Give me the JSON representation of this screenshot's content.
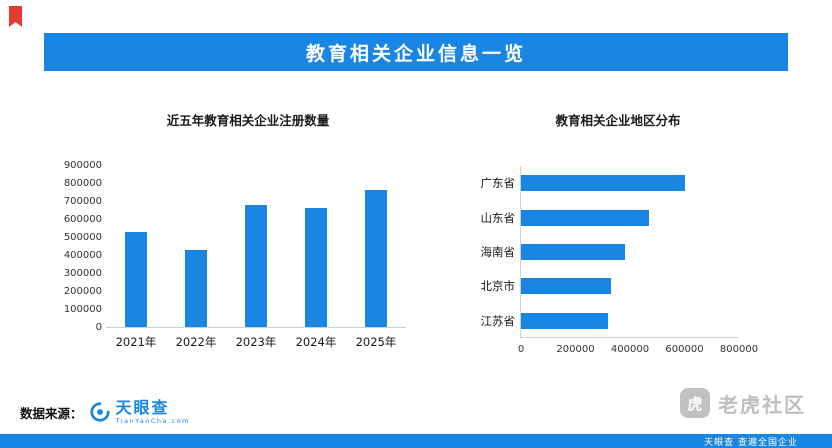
{
  "page": {
    "banner_title": "教育相关企业信息一览",
    "watermark_text": "老虎社区",
    "watermark_badge": "虎"
  },
  "footer": {
    "source_label": "数据来源：",
    "logo_text": "天眼查",
    "logo_subtext": "TianYanCha.com",
    "bottom_bar_text": "天眼查 查遍全国企业"
  },
  "colors": {
    "accent": "#1a86e3",
    "bar": "#1a86e3",
    "corner_mark": "#e23b30",
    "watermark": "#8f8f8f"
  },
  "chart_data": [
    {
      "type": "bar",
      "orientation": "vertical",
      "title": "近五年教育相关企业注册数量",
      "categories": [
        "2021年",
        "2022年",
        "2023年",
        "2024年",
        "2025年"
      ],
      "values": [
        530000,
        430000,
        680000,
        660000,
        760000
      ],
      "xlabel": "",
      "ylabel": "",
      "ylim": [
        0,
        900000
      ],
      "ytick_step": 100000,
      "grid": false,
      "legend": "none"
    },
    {
      "type": "bar",
      "orientation": "horizontal",
      "title": "教育相关企业地区分布",
      "categories": [
        "广东省",
        "山东省",
        "海南省",
        "北京市",
        "江苏省"
      ],
      "values": [
        600000,
        470000,
        380000,
        330000,
        320000
      ],
      "xlabel": "",
      "ylabel": "",
      "xlim": [
        0,
        800000
      ],
      "xticks": [
        0,
        200000,
        400000,
        600000,
        800000
      ],
      "grid": false,
      "legend": "none"
    }
  ]
}
